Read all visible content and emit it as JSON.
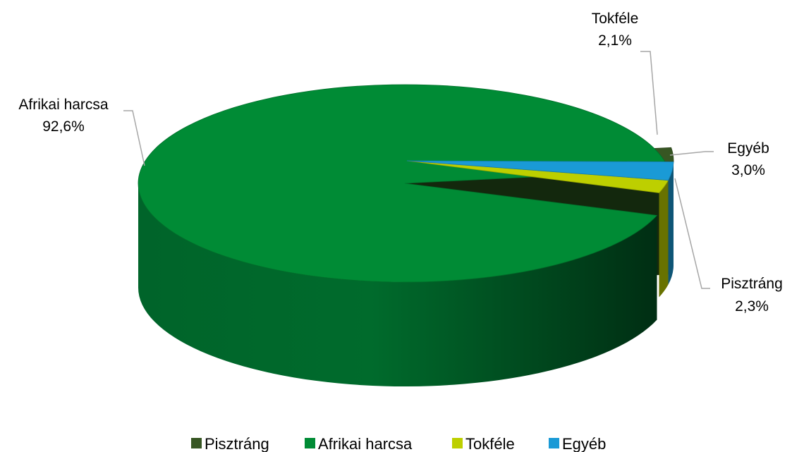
{
  "chart_data": {
    "type": "pie",
    "title": "",
    "slices": [
      {
        "key": "pisztrang",
        "name": "Pisztráng",
        "value": 2.3,
        "label": "2,3%",
        "color": "#375623"
      },
      {
        "key": "afrikai",
        "name": "Afrikai harcsa",
        "value": 92.6,
        "label": "92,6%",
        "color": "#008b35"
      },
      {
        "key": "tokfele",
        "name": "Tokféle",
        "value": 2.1,
        "label": "2,1%",
        "color": "#bdcf00"
      },
      {
        "key": "egyeb",
        "name": "Egyéb",
        "value": 3.0,
        "label": "3,0%",
        "color": "#1a9ad6"
      }
    ],
    "legend_position": "bottom",
    "style": "3d-pie"
  }
}
